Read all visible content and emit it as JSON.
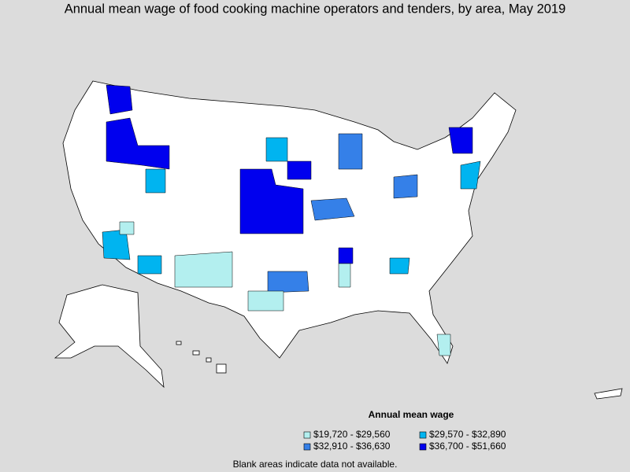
{
  "title": "Annual mean wage of food cooking machine operators and tenders, by area, May 2019",
  "legend": {
    "title": "Annual mean wage",
    "items": [
      {
        "label": "$19,720 - $29,560",
        "color": "#b3efef"
      },
      {
        "label": "$29,570 - $32,890",
        "color": "#00b4f0"
      },
      {
        "label": "$32,910 - $36,630",
        "color": "#3580e8"
      },
      {
        "label": "$36,700 - $51,660",
        "color": "#0000ee"
      }
    ]
  },
  "note": "Blank areas indicate data not available."
}
